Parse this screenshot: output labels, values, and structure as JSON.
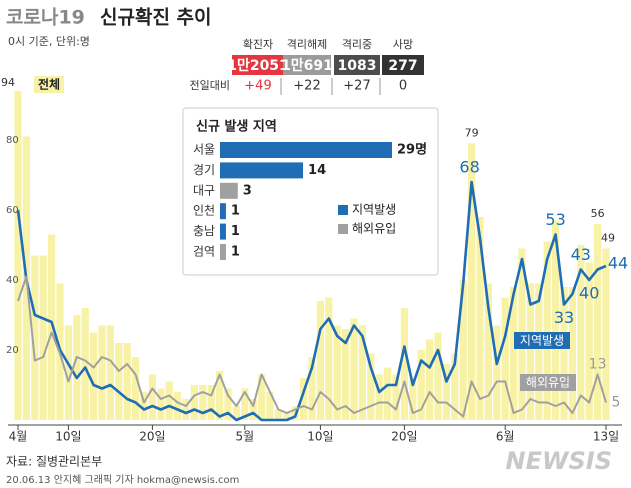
{
  "header": {
    "title_prefix": "코로나19",
    "title": "신규확진 추이",
    "subtitle": "0시 기준, 단위:명"
  },
  "stats": {
    "headers": [
      "확진자",
      "격리해제",
      "격리중",
      "사망"
    ],
    "values": [
      "1만2051",
      "1만691",
      "1083",
      "277"
    ],
    "change_label": "전일대비",
    "changes": [
      "+49",
      "+22",
      "+27",
      "0"
    ]
  },
  "chart_data": [
    {
      "type": "bar_line",
      "categories": [
        "4월",
        null,
        null,
        null,
        null,
        null,
        "10일",
        null,
        null,
        null,
        null,
        null,
        null,
        null,
        null,
        null,
        "20일",
        null,
        null,
        null,
        null,
        null,
        null,
        null,
        null,
        null,
        null,
        "5월",
        null,
        null,
        null,
        null,
        null,
        null,
        null,
        null,
        "10일",
        null,
        null,
        null,
        null,
        null,
        null,
        null,
        null,
        null,
        "20일",
        null,
        null,
        null,
        null,
        null,
        null,
        null,
        null,
        null,
        null,
        null,
        "6월",
        null,
        null,
        null,
        null,
        null,
        null,
        null,
        null,
        null,
        null,
        null,
        "13일"
      ],
      "ylim": [
        0,
        100
      ],
      "yticks": [
        20,
        40,
        60,
        80
      ],
      "grid": false,
      "series": [
        {
          "name": "전체",
          "kind": "bar",
          "color": "#f8f2a6",
          "values": [
            94,
            81,
            47,
            47,
            53,
            39,
            27,
            30,
            32,
            25,
            27,
            27,
            22,
            22,
            18,
            8,
            13,
            9,
            11,
            8,
            6,
            10,
            10,
            10,
            14,
            9,
            4,
            9,
            6,
            13,
            8,
            3,
            2,
            4,
            12,
            18,
            34,
            35,
            27,
            26,
            29,
            27,
            19,
            13,
            15,
            13,
            32,
            12,
            20,
            23,
            25,
            16,
            19,
            40,
            79,
            58,
            39,
            27,
            35,
            38,
            49,
            39,
            39,
            51,
            57,
            38,
            38,
            50,
            45,
            56,
            49
          ]
        },
        {
          "name": "지역발생",
          "kind": "line",
          "color": "#1f6db5",
          "values": [
            60,
            40,
            30,
            29,
            28,
            20,
            16,
            12,
            15,
            10,
            9,
            10,
            8,
            6,
            5,
            3,
            4,
            3,
            4,
            3,
            2,
            3,
            2,
            3,
            1,
            2,
            0,
            1,
            2,
            0,
            0,
            0,
            0,
            1,
            8,
            15,
            26,
            29,
            24,
            22,
            27,
            24,
            15,
            8,
            10,
            10,
            21,
            10,
            17,
            15,
            20,
            11,
            16,
            39,
            68,
            52,
            32,
            16,
            24,
            36,
            46,
            33,
            34,
            46,
            53,
            33,
            36,
            43,
            40,
            43,
            44
          ]
        },
        {
          "name": "해외유입",
          "kind": "line",
          "color": "#a0a0a0",
          "values": [
            34,
            41,
            17,
            18,
            25,
            19,
            11,
            18,
            17,
            15,
            18,
            17,
            14,
            16,
            13,
            5,
            9,
            6,
            7,
            5,
            4,
            7,
            8,
            7,
            13,
            7,
            4,
            8,
            4,
            13,
            8,
            3,
            2,
            3,
            4,
            3,
            8,
            6,
            3,
            4,
            2,
            3,
            4,
            5,
            5,
            3,
            11,
            2,
            3,
            8,
            5,
            5,
            3,
            1,
            11,
            6,
            7,
            11,
            11,
            2,
            3,
            6,
            5,
            5,
            4,
            5,
            2,
            7,
            5,
            13,
            5
          ]
        }
      ]
    },
    {
      "type": "hbar",
      "title": "신규 발생 지역",
      "categories": [
        "서울",
        "경기",
        "대구",
        "인천",
        "충남",
        "검역"
      ],
      "values": [
        29,
        14,
        3,
        1,
        1,
        1
      ],
      "value_labels": [
        "29명",
        "14",
        "3",
        "1",
        "1",
        "1"
      ],
      "colors": [
        "#1f6db5",
        "#1f6db5",
        "#a0a0a0",
        "#1f6db5",
        "#1f6db5",
        "#a0a0a0"
      ],
      "legend": [
        {
          "name": "지역발생",
          "color": "#1f6db5"
        },
        {
          "name": "해외유입",
          "color": "#a0a0a0"
        }
      ]
    }
  ],
  "footer": {
    "source": "자료: 질병관리본부",
    "credit": "20.06.13 안지혜 그래픽 기자 hokma@newsis.com",
    "logo": "NEWSIS"
  }
}
